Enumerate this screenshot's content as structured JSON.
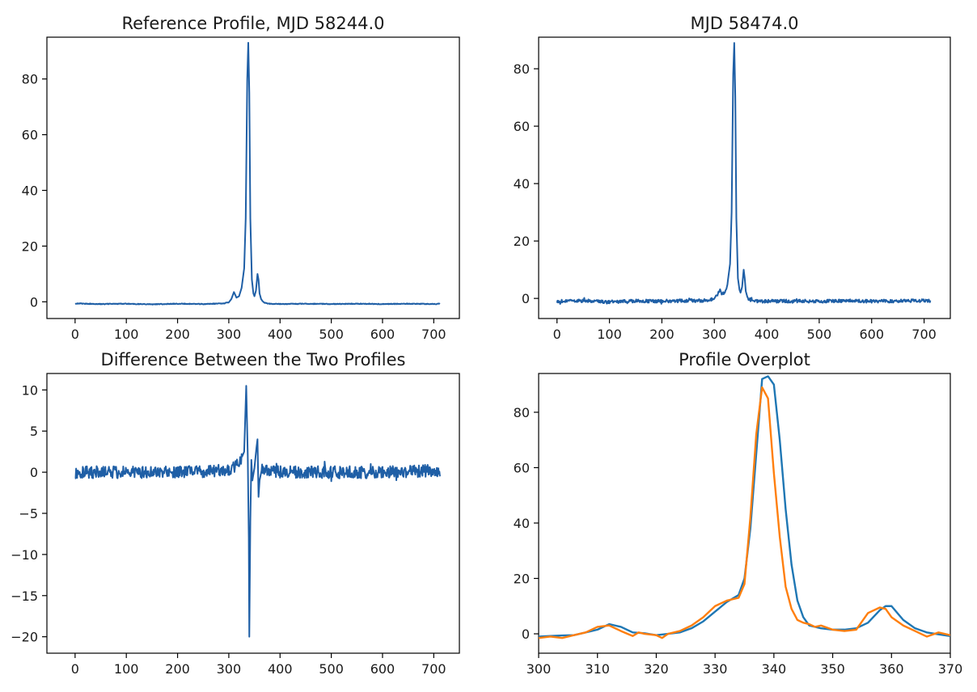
{
  "chart_data": [
    {
      "type": "line",
      "title": "Reference Profile, MJD 58244.0",
      "xlim": [
        -55,
        750
      ],
      "ylim": [
        -6,
        95
      ],
      "xticks": [
        0,
        100,
        200,
        300,
        400,
        500,
        600,
        700
      ],
      "yticks": [
        0,
        20,
        40,
        60,
        80
      ],
      "grid": false,
      "series": [
        {
          "color": "#1f5fa6",
          "x": [
            0,
            50,
            100,
            150,
            200,
            250,
            290,
            300,
            305,
            310,
            315,
            320,
            325,
            330,
            333,
            336,
            338,
            340,
            342,
            345,
            348,
            350,
            353,
            356,
            358,
            360,
            363,
            366,
            370,
            380,
            400,
            450,
            500,
            550,
            600,
            650,
            700,
            712
          ],
          "y": [
            -0.6,
            -0.8,
            -0.7,
            -0.9,
            -0.7,
            -0.8,
            -0.6,
            -0.2,
            1,
            3.5,
            1.5,
            2,
            5,
            12,
            30,
            80,
            93,
            75,
            30,
            8,
            3,
            2,
            4,
            10,
            8,
            3,
            1,
            0.2,
            -0.4,
            -0.7,
            -0.8,
            -0.7,
            -0.8,
            -0.7,
            -0.8,
            -0.7,
            -0.8,
            -0.7
          ]
        }
      ]
    },
    {
      "type": "line",
      "title": "MJD 58474.0",
      "xlim": [
        -35,
        750
      ],
      "ylim": [
        -7,
        91
      ],
      "xticks": [
        0,
        100,
        200,
        300,
        400,
        500,
        600,
        700
      ],
      "yticks": [
        0,
        20,
        40,
        60,
        80
      ],
      "grid": false,
      "series": [
        {
          "color": "#1f5fa6",
          "noisy_baseline": true,
          "x": [
            0,
            50,
            100,
            150,
            200,
            250,
            290,
            300,
            305,
            310,
            315,
            320,
            325,
            330,
            333,
            336,
            338,
            340,
            342,
            345,
            348,
            350,
            353,
            356,
            358,
            360,
            363,
            366,
            370,
            380,
            400,
            450,
            500,
            550,
            600,
            650,
            700,
            712
          ],
          "y": [
            -1,
            -0.8,
            -1.2,
            -0.9,
            -1,
            -0.8,
            -0.7,
            0,
            1,
            3,
            1.5,
            2,
            5,
            12,
            30,
            78,
            89,
            70,
            28,
            7,
            3,
            2,
            4,
            10,
            7,
            2.5,
            0.5,
            -0.3,
            -0.6,
            -0.9,
            -1,
            -0.9,
            -1,
            -0.8,
            -1,
            -0.9,
            -0.8,
            -0.9
          ]
        }
      ]
    },
    {
      "type": "line",
      "title": "Difference Between the Two Profiles",
      "xlim": [
        -55,
        750
      ],
      "ylim": [
        -22,
        12
      ],
      "xticks": [
        0,
        100,
        200,
        300,
        400,
        500,
        600,
        700
      ],
      "yticks": [
        10,
        5,
        0,
        -5,
        -10,
        -15,
        -20
      ],
      "grid": false,
      "series": [
        {
          "color": "#1f5fa6",
          "noisy_baseline": true,
          "x": [
            0,
            100,
            200,
            300,
            320,
            330,
            334,
            337,
            339,
            340,
            342,
            344,
            346,
            350,
            354,
            356,
            358,
            360,
            365,
            370,
            400,
            500,
            600,
            712
          ],
          "y": [
            0,
            0,
            0,
            0.2,
            1,
            2.5,
            10.5,
            2,
            -8,
            -20,
            -6,
            1.5,
            -1,
            0.5,
            3,
            4,
            -3,
            -1,
            0.5,
            0.2,
            0,
            0,
            0,
            0.2
          ]
        }
      ]
    },
    {
      "type": "line",
      "title": "Profile Overplot",
      "xlim": [
        300,
        370
      ],
      "ylim": [
        -7,
        94
      ],
      "xticks": [
        300,
        310,
        320,
        330,
        340,
        350,
        360,
        370
      ],
      "yticks": [
        0,
        20,
        40,
        60,
        80
      ],
      "grid": false,
      "series": [
        {
          "color": "#1f77b4",
          "x": [
            300,
            302,
            304,
            306,
            308,
            310,
            312,
            314,
            316,
            318,
            320,
            322,
            324,
            326,
            328,
            330,
            332,
            334,
            335,
            336,
            337,
            338,
            339,
            340,
            341,
            342,
            343,
            344,
            345,
            346,
            348,
            350,
            352,
            354,
            356,
            358,
            359,
            360,
            362,
            364,
            366,
            368,
            370
          ],
          "y": [
            -1,
            -0.8,
            -0.6,
            -0.5,
            0.5,
            1.5,
            3.5,
            2.5,
            0.5,
            0.2,
            -0.5,
            0,
            0.5,
            2,
            4.5,
            8,
            11.5,
            14,
            20,
            38,
            65,
            92,
            93,
            90,
            70,
            45,
            25,
            12,
            6,
            3,
            2,
            1.5,
            1.5,
            2,
            4,
            8.5,
            10,
            10,
            5,
            2,
            0.5,
            -0.2,
            -0.8
          ]
        },
        {
          "color": "#ff7f0e",
          "x": [
            300,
            302,
            304,
            306,
            308,
            310,
            312,
            314,
            316,
            317,
            318,
            320,
            321,
            322,
            324,
            326,
            328,
            330,
            332,
            334,
            335,
            336,
            337,
            338,
            339,
            340,
            341,
            342,
            343,
            344,
            345,
            346,
            347,
            348,
            350,
            352,
            354,
            356,
            358,
            359,
            360,
            362,
            364,
            366,
            368,
            370
          ],
          "y": [
            -1.5,
            -1,
            -1.5,
            -0.5,
            0.5,
            2.5,
            3,
            1,
            -0.8,
            0.5,
            0,
            -0.5,
            -1.5,
            0,
            1,
            3,
            6,
            10,
            12,
            13,
            18,
            42,
            72,
            89,
            85,
            58,
            35,
            17,
            9,
            5,
            4,
            3.5,
            2.5,
            3,
            1.5,
            1,
            1.5,
            7.5,
            9.5,
            9,
            6,
            3,
            1,
            -1,
            0.5,
            -0.5
          ]
        }
      ]
    }
  ]
}
